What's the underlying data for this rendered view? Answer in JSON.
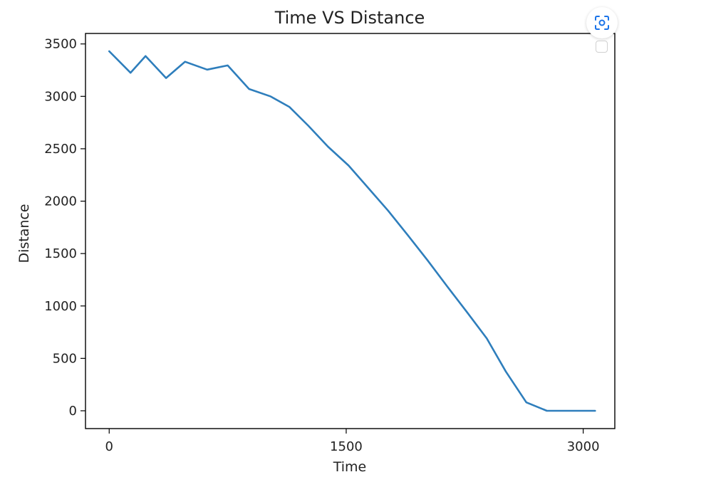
{
  "chart_data": {
    "type": "line",
    "title": "Time VS Distance",
    "xlabel": "Time",
    "ylabel": "Distance",
    "xlim": [
      -150,
      3200
    ],
    "ylim": [
      -170,
      3600
    ],
    "xticks": [
      0,
      1500,
      3000
    ],
    "yticks": [
      0,
      500,
      1000,
      1500,
      2000,
      2500,
      3000,
      3500
    ],
    "grid": false,
    "series": [
      {
        "color": "#2e7ebc",
        "x": [
          0,
          135,
          230,
          360,
          480,
          620,
          750,
          885,
          1020,
          1140,
          1260,
          1385,
          1515,
          1640,
          1765,
          1890,
          2015,
          2140,
          2265,
          2390,
          2510,
          2640,
          2770,
          2890,
          3010,
          3075
        ],
        "y": [
          3430,
          3225,
          3385,
          3175,
          3330,
          3255,
          3295,
          3070,
          3000,
          2900,
          2720,
          2520,
          2340,
          2125,
          1910,
          1675,
          1435,
          1185,
          940,
          690,
          375,
          80,
          0,
          0,
          0,
          0
        ]
      }
    ]
  },
  "overlay": {
    "lens_icon": "google-lens-icon",
    "legend_icon": "empty-legend-box"
  },
  "colors": {
    "line": "#2e7ebc",
    "lens_accent": "#1a73e8"
  }
}
